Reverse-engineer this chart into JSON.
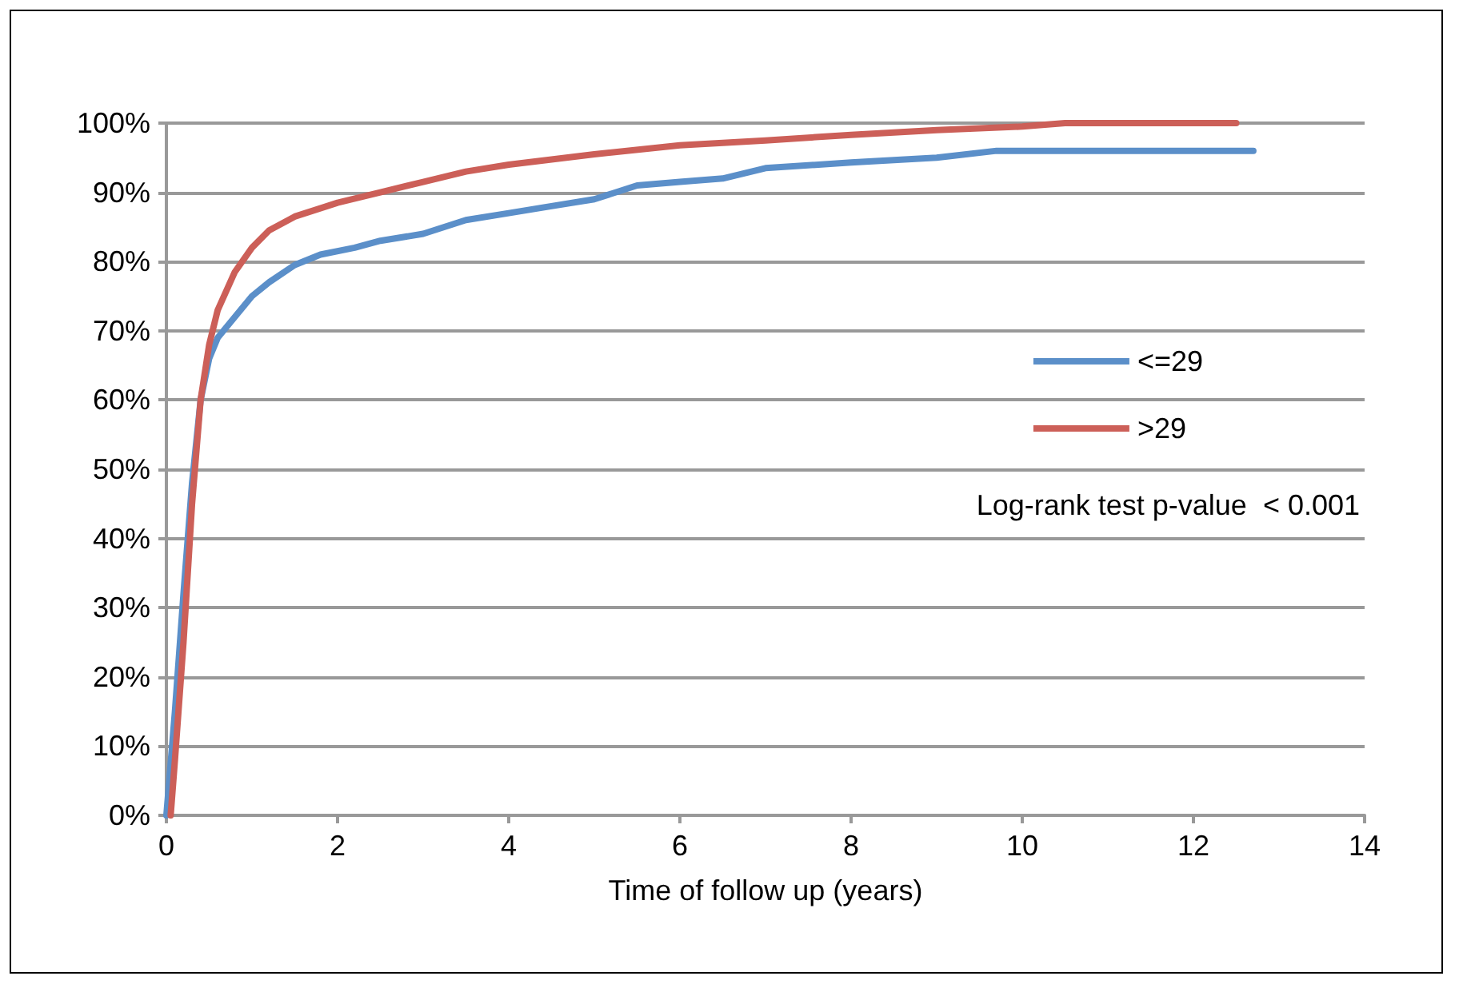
{
  "chart_data": {
    "type": "line",
    "xlabel": "Time of follow up (years)",
    "annotations": [
      "Log-rank test p-value  < 0.001"
    ],
    "xlim": [
      0,
      14
    ],
    "xticks": [
      0,
      2,
      4,
      6,
      8,
      10,
      12,
      14
    ],
    "ylim": [
      0,
      100
    ],
    "yticks": [
      {
        "value": 0,
        "label": "0%"
      },
      {
        "value": 10,
        "label": "10%"
      },
      {
        "value": 20,
        "label": "20%"
      },
      {
        "value": 30,
        "label": "30%"
      },
      {
        "value": 40,
        "label": "40%"
      },
      {
        "value": 50,
        "label": "50%"
      },
      {
        "value": 60,
        "label": "60%"
      },
      {
        "value": 70,
        "label": "70%"
      },
      {
        "value": 80,
        "label": "80%"
      },
      {
        "value": 90,
        "label": "90%"
      },
      {
        "value": 100,
        "label": "100%"
      }
    ],
    "grid": "y",
    "legend": "right",
    "marker": "none",
    "line_style": "solid",
    "series": [
      {
        "name": "<=29",
        "color": "#5b8fc9",
        "x": [
          0,
          0.1,
          0.2,
          0.3,
          0.4,
          0.5,
          0.6,
          0.8,
          1.0,
          1.2,
          1.5,
          1.8,
          2.2,
          2.5,
          3,
          3.5,
          4,
          4.5,
          5,
          5.5,
          6,
          6.5,
          7,
          8,
          9,
          9.7,
          10,
          12.7
        ],
        "values": [
          0,
          15,
          32,
          48,
          60,
          66,
          69,
          72,
          75,
          77,
          79.5,
          81,
          82,
          83,
          84,
          86,
          87,
          88,
          89,
          91,
          91.5,
          92,
          93.5,
          94.3,
          95,
          96,
          96,
          96
        ]
      },
      {
        "name": ">29",
        "color": "#cc5f58",
        "x": [
          0.05,
          0.1,
          0.2,
          0.3,
          0.4,
          0.5,
          0.6,
          0.8,
          1.0,
          1.2,
          1.5,
          2,
          2.5,
          3,
          3.5,
          4,
          5,
          6,
          7,
          8,
          9,
          10,
          10.5,
          12.5
        ],
        "values": [
          0,
          8,
          25,
          45,
          60,
          68,
          73,
          78.5,
          82,
          84.5,
          86.5,
          88.5,
          90,
          91.5,
          93,
          94,
          95.5,
          96.8,
          97.5,
          98.3,
          99,
          99.5,
          100,
          100
        ]
      }
    ]
  }
}
